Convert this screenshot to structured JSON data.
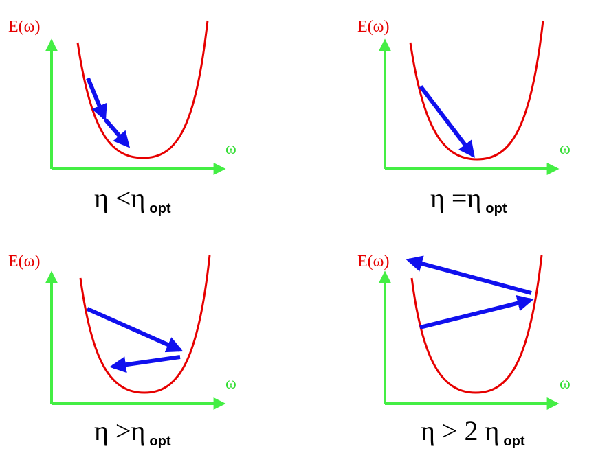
{
  "panels": [
    {
      "y_label": "E(ω)",
      "x_label": "ω",
      "condition": {
        "symbol": "η",
        "relation": "<",
        "factor": "",
        "rhs_symbol": "η",
        "subscript": "opt"
      }
    },
    {
      "y_label": "E(ω)",
      "x_label": "ω",
      "condition": {
        "symbol": "η",
        "relation": "=",
        "factor": "",
        "rhs_symbol": "η",
        "subscript": "opt"
      }
    },
    {
      "y_label": "E(ω)",
      "x_label": "ω",
      "condition": {
        "symbol": "η",
        "relation": ">",
        "factor": "",
        "rhs_symbol": "η",
        "subscript": "opt"
      }
    },
    {
      "y_label": "E(ω)",
      "x_label": "ω",
      "condition": {
        "symbol": "η",
        "relation": ">",
        "factor": "2",
        "rhs_symbol": "η",
        "subscript": "opt"
      }
    }
  ],
  "colors": {
    "curve": "#e60000",
    "axes": "#44ee44",
    "steps": "#1010ee",
    "text": "#000000"
  }
}
